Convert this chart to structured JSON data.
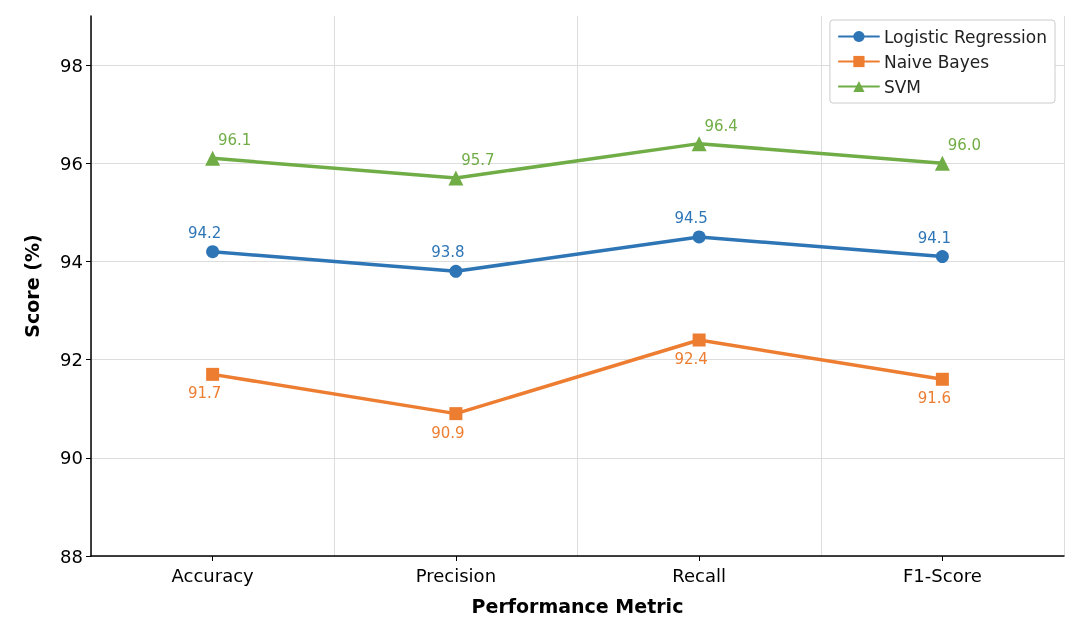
{
  "chart_data": {
    "type": "line",
    "xlabel": "Performance Metric",
    "ylabel": "Score (%)",
    "categories": [
      "Accuracy",
      "Precision",
      "Recall",
      "F1-Score"
    ],
    "series": [
      {
        "name": "Logistic Regression",
        "color": "#2e75b6",
        "marker": "circle",
        "values": [
          94.2,
          93.8,
          94.5,
          94.1
        ],
        "value_labels": [
          "94.2",
          "93.8",
          "94.5",
          "94.1"
        ]
      },
      {
        "name": "Naive Bayes",
        "color": "#ed7d31",
        "marker": "square",
        "values": [
          91.7,
          90.9,
          92.4,
          91.6
        ],
        "value_labels": [
          "91.7",
          "90.9",
          "92.4",
          "91.6"
        ]
      },
      {
        "name": "SVM",
        "color": "#70ad47",
        "marker": "triangle",
        "values": [
          96.1,
          95.7,
          96.4,
          96.0
        ],
        "value_labels": [
          "96.1",
          "95.7",
          "96.4",
          "96.0"
        ]
      }
    ],
    "ylim": [
      88,
      99
    ],
    "yticks": [
      88,
      90,
      92,
      94,
      96,
      98
    ],
    "grid": true,
    "legend": "top right",
    "line_style": "solid"
  }
}
